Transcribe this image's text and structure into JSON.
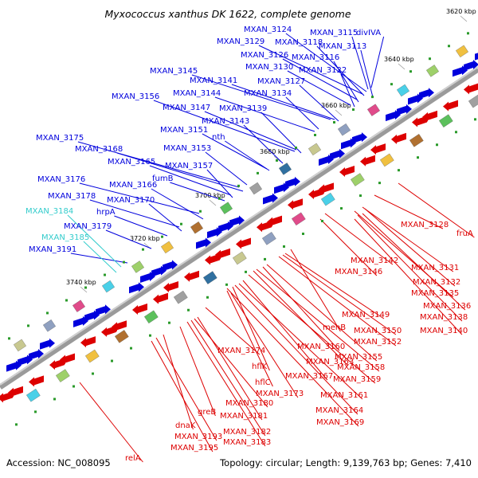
{
  "title": "Myxococcus xanthus DK 1622, complete genome",
  "footer": {
    "accession": "Accession: NC_008095",
    "summary": "Topology: circular; Length: 9,139,763 bp; Genes: 7,410"
  },
  "colors": {
    "forward": "#0000dd",
    "reverse": "#dd0000",
    "rna": "#33cccc",
    "backbone": "#888888"
  },
  "ruler": [
    "3620 kbp",
    "3640 kbp",
    "3660 kbp",
    "3680 kbp",
    "3700 kbp",
    "3720 kbp",
    "3740 kbp"
  ],
  "forward_genes": [
    "MXAN_3124",
    "MXAN_3115",
    "MXAN_3129",
    "MXAN_3118",
    "divIVA",
    "MXAN_3113",
    "MXAN_3126",
    "MXAN_3116",
    "MXAN_3130",
    "MXAN_3122",
    "MXAN_3145",
    "MXAN_3141",
    "MXAN_3127",
    "MXAN_3144",
    "MXAN_3134",
    "MXAN_3156",
    "MXAN_3147",
    "MXAN_3139",
    "MXAN_3143",
    "MXAN_3151",
    "nth",
    "MXAN_3175",
    "MXAN_3168",
    "MXAN_3153",
    "MXAN_3165",
    "MXAN_3157",
    "fumB",
    "MXAN_3176",
    "MXAN_3166",
    "MXAN_3178",
    "MXAN_3170",
    "hrpA",
    "MXAN_3179",
    "MXAN_3191"
  ],
  "rna_genes": [
    "MXAN_3184",
    "MXAN_3185"
  ],
  "reverse_genes": [
    "MXAN_3128",
    "fruA",
    "MXAN_3142",
    "MXAN_3131",
    "MXAN_3146",
    "MXAN_3132",
    "MXAN_3135",
    "MXAN_3136",
    "MXAN_3138",
    "MXAN_3140",
    "MXAN_3149",
    "menB",
    "MXAN_3150",
    "MXAN_3152",
    "MXAN_3160",
    "MXAN_3155",
    "MXAN_3174",
    "MXAN_3163",
    "MXAN_3158",
    "hflK",
    "MXAN_3167",
    "MXAN_3159",
    "hflC",
    "MXAN_3173",
    "MXAN_3161",
    "MXAN_3180",
    "greB",
    "MXAN_3181",
    "MXAN_3164",
    "MXAN_3169",
    "dnaK",
    "MXAN_3182",
    "MXAN_3193",
    "MXAN_3183",
    "MXAN_3195",
    "relA"
  ]
}
